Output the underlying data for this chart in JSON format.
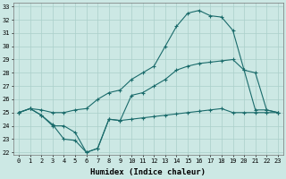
{
  "xlabel": "Humidex (Indice chaleur)",
  "bg_color": "#cce8e4",
  "grid_color": "#aacfca",
  "line_color": "#1a6b6b",
  "xlim_min": -0.5,
  "xlim_max": 23.5,
  "ylim_min": 21.8,
  "ylim_max": 33.3,
  "xticks": [
    0,
    1,
    2,
    3,
    4,
    5,
    6,
    7,
    8,
    9,
    10,
    11,
    12,
    13,
    14,
    15,
    16,
    17,
    18,
    19,
    20,
    21,
    22,
    23
  ],
  "yticks": [
    22,
    23,
    24,
    25,
    26,
    27,
    28,
    29,
    30,
    31,
    32,
    33
  ],
  "line1_x": [
    0,
    1,
    2,
    3,
    4,
    5,
    6,
    7,
    8,
    9,
    10,
    11,
    12,
    13,
    14,
    15,
    16,
    17,
    18,
    19,
    20,
    21,
    22,
    23
  ],
  "line1_y": [
    25.0,
    25.3,
    24.8,
    24.0,
    24.0,
    23.5,
    22.0,
    22.3,
    24.5,
    24.4,
    24.5,
    24.6,
    24.7,
    24.8,
    24.9,
    25.0,
    25.1,
    25.2,
    25.3,
    25.0,
    25.0,
    25.0,
    25.0,
    25.0
  ],
  "line2_x": [
    0,
    1,
    2,
    3,
    4,
    5,
    6,
    7,
    8,
    9,
    10,
    11,
    12,
    13,
    14,
    15,
    16,
    17,
    18,
    19,
    20,
    21,
    22,
    23
  ],
  "line2_y": [
    25.0,
    25.3,
    24.8,
    24.1,
    23.0,
    22.9,
    22.0,
    22.3,
    24.5,
    24.4,
    26.3,
    26.5,
    27.0,
    27.5,
    28.2,
    28.5,
    28.7,
    28.8,
    28.9,
    29.0,
    28.2,
    28.0,
    25.2,
    25.0
  ],
  "line3_x": [
    0,
    1,
    2,
    3,
    4,
    5,
    6,
    7,
    8,
    9,
    10,
    11,
    12,
    13,
    14,
    15,
    16,
    17,
    18,
    19,
    20,
    21,
    22,
    23
  ],
  "line3_y": [
    25.0,
    25.3,
    25.2,
    25.0,
    25.0,
    25.2,
    25.3,
    26.0,
    26.5,
    26.7,
    27.5,
    28.0,
    28.5,
    30.0,
    31.5,
    32.5,
    32.7,
    32.3,
    32.2,
    31.2,
    28.2,
    25.2,
    25.2,
    25.0
  ]
}
